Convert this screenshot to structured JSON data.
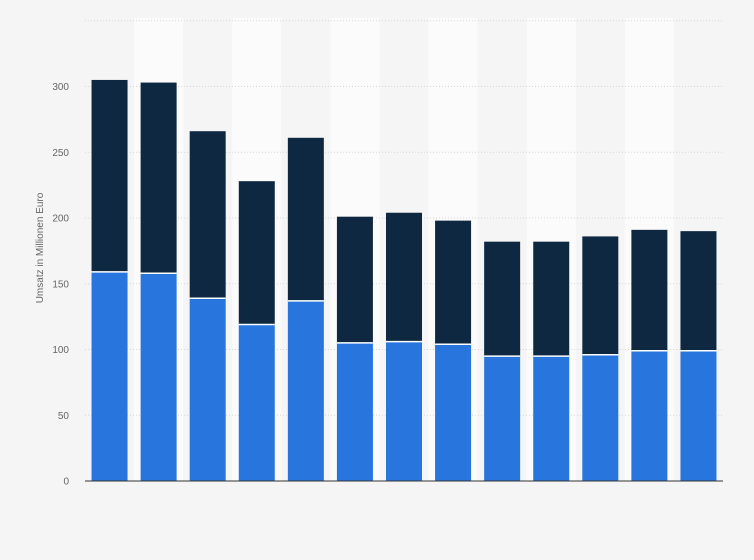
{
  "chart_data": {
    "type": "bar",
    "stacked": true,
    "ylabel": "Umsatz in Millionen Euro",
    "ylim": [
      0,
      350
    ],
    "yticks": [
      0,
      50,
      100,
      150,
      200,
      250,
      300
    ],
    "grid": true,
    "categories": [
      "",
      "",
      "",
      "",
      "",
      "",
      "",
      "",
      "",
      "",
      "",
      "",
      ""
    ],
    "series": [
      {
        "color": "#2876dd",
        "values": [
          159,
          158,
          139,
          119,
          137,
          105,
          106,
          104,
          95,
          95,
          96,
          99,
          99
        ]
      },
      {
        "color": "#0f2841",
        "values": [
          146,
          145,
          127,
          109,
          124,
          96,
          98,
          94,
          87,
          87,
          90,
          92,
          91
        ]
      }
    ]
  }
}
